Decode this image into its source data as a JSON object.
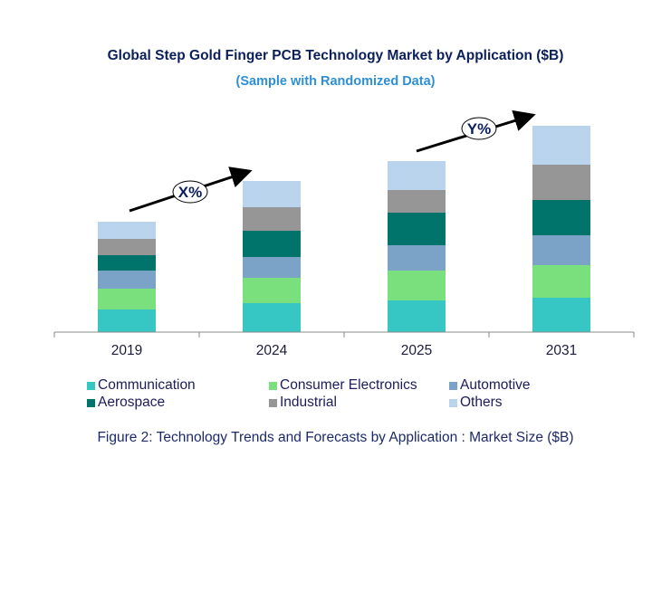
{
  "chart_data": {
    "type": "bar",
    "stacked": true,
    "title": "Global Step Gold Finger PCB Technology Market by Application ($B)",
    "subtitle": "(Sample with Randomized Data)",
    "caption": "Figure 2: Technology  Trends  and Forecasts by Application : Market Size ($B)",
    "categories": [
      "2019",
      "2024",
      "2025",
      "2031"
    ],
    "series": [
      {
        "name": "Communication",
        "color": "#36c6c4",
        "values": [
          2.5,
          3.2,
          3.5,
          3.8
        ]
      },
      {
        "name": "Consumer Electronics",
        "color": "#7ae07e",
        "values": [
          2.3,
          2.8,
          3.3,
          3.6
        ]
      },
      {
        "name": "Automotive",
        "color": "#7ba3c8",
        "values": [
          2.0,
          2.3,
          2.8,
          3.3
        ]
      },
      {
        "name": "Aerospace",
        "color": "#00736a",
        "values": [
          1.7,
          2.9,
          3.6,
          3.9
        ]
      },
      {
        "name": "Industrial",
        "color": "#969696",
        "values": [
          1.8,
          2.6,
          2.5,
          3.9
        ]
      },
      {
        "name": "Others",
        "color": "#bad4ee",
        "values": [
          1.9,
          2.9,
          3.2,
          4.3
        ]
      }
    ],
    "ylim": [
      0,
      23
    ],
    "y_axis_shown": false,
    "grid": false,
    "legend": "bottom",
    "annotations": [
      {
        "text": "X%",
        "from": "2019",
        "to": "2024"
      },
      {
        "text": "Y%",
        "from": "2025",
        "to": "2031"
      }
    ]
  }
}
